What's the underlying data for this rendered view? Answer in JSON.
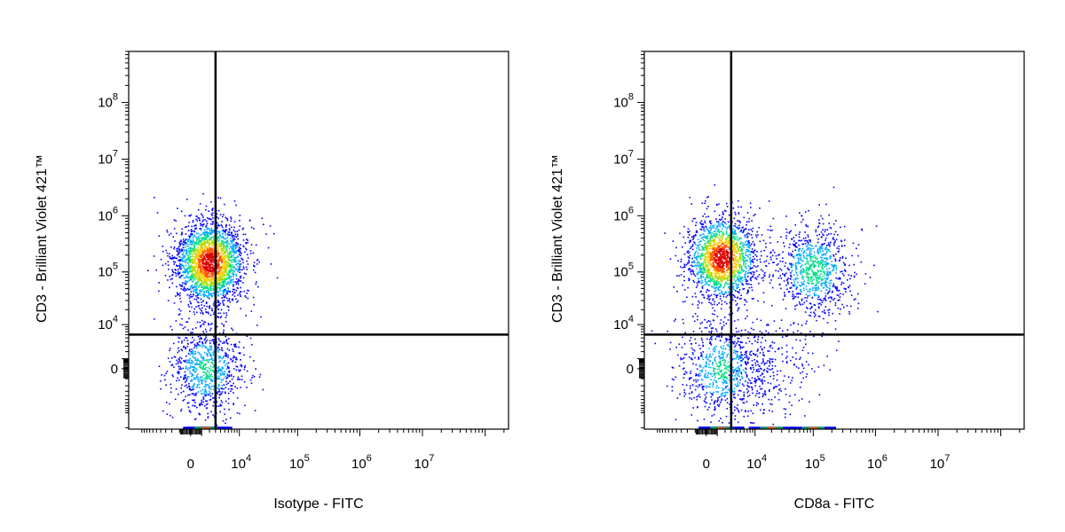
{
  "chart_data": [
    {
      "type": "scatter",
      "title": "",
      "xlabel": "Isotype - FITC",
      "ylabel": "CD3 - Brilliant Violet 421™",
      "x_scale": "biexponential",
      "y_scale": "biexponential",
      "x_tick_labels": [
        {
          "base": "0",
          "exp": ""
        },
        {
          "base": "10",
          "exp": "4"
        },
        {
          "base": "10",
          "exp": "5"
        },
        {
          "base": "10",
          "exp": "6"
        },
        {
          "base": "10",
          "exp": "7"
        }
      ],
      "y_tick_labels": [
        {
          "base": "0",
          "exp": ""
        },
        {
          "base": "10",
          "exp": "4"
        },
        {
          "base": "10",
          "exp": "5"
        },
        {
          "base": "10",
          "exp": "6"
        },
        {
          "base": "10",
          "exp": "7"
        },
        {
          "base": "10",
          "exp": "8"
        }
      ],
      "gate_x": 3000,
      "gate_y": 6000,
      "grid": false,
      "colormap": [
        "#0000ff",
        "#00aaff",
        "#00dd88",
        "#aadd00",
        "#ffcc00",
        "#ff5500",
        "#dd0000"
      ],
      "populations": [
        {
          "x_center": 2000,
          "y_center": 150000,
          "count": 2400,
          "peak_density": 1.0
        },
        {
          "x_center": 1500,
          "y_center": 0,
          "count": 900,
          "peak_density": 0.45
        }
      ]
    },
    {
      "type": "scatter",
      "title": "",
      "xlabel": "CD8a - FITC",
      "ylabel": "CD3 - Brilliant Violet 421™",
      "x_scale": "biexponential",
      "y_scale": "biexponential",
      "x_tick_labels": [
        {
          "base": "0",
          "exp": ""
        },
        {
          "base": "10",
          "exp": "4"
        },
        {
          "base": "10",
          "exp": "5"
        },
        {
          "base": "10",
          "exp": "6"
        },
        {
          "base": "10",
          "exp": "7"
        }
      ],
      "y_tick_labels": [
        {
          "base": "0",
          "exp": ""
        },
        {
          "base": "10",
          "exp": "4"
        },
        {
          "base": "10",
          "exp": "5"
        },
        {
          "base": "10",
          "exp": "6"
        },
        {
          "base": "10",
          "exp": "7"
        },
        {
          "base": "10",
          "exp": "8"
        }
      ],
      "gate_x": 3000,
      "gate_y": 6000,
      "grid": false,
      "colormap": [
        "#0000ff",
        "#00aaff",
        "#00dd88",
        "#aadd00",
        "#ffcc00",
        "#ff5500",
        "#dd0000"
      ],
      "populations": [
        {
          "x_center": 1500,
          "y_center": 180000,
          "count": 1800,
          "peak_density": 1.0
        },
        {
          "x_center": 100000,
          "y_center": 110000,
          "count": 900,
          "peak_density": 0.5
        },
        {
          "x_center": 1500,
          "y_center": 0,
          "count": 800,
          "peak_density": 0.45
        },
        {
          "x_center": 20000,
          "y_center": 0,
          "count": 250,
          "peak_density": 0.1
        }
      ]
    }
  ]
}
